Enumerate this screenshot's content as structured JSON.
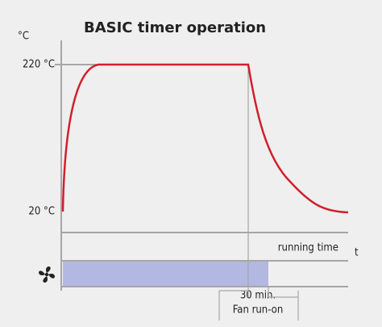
{
  "title": "BASIC timer operation",
  "y_axis": {
    "unit": "°C",
    "labels": [
      "220 °C",
      "20 °C"
    ]
  },
  "x_axis": {
    "label": "t",
    "note": "running time"
  },
  "annotation": {
    "lines": [
      "30 min.",
      "Fan run-on"
    ]
  }
}
